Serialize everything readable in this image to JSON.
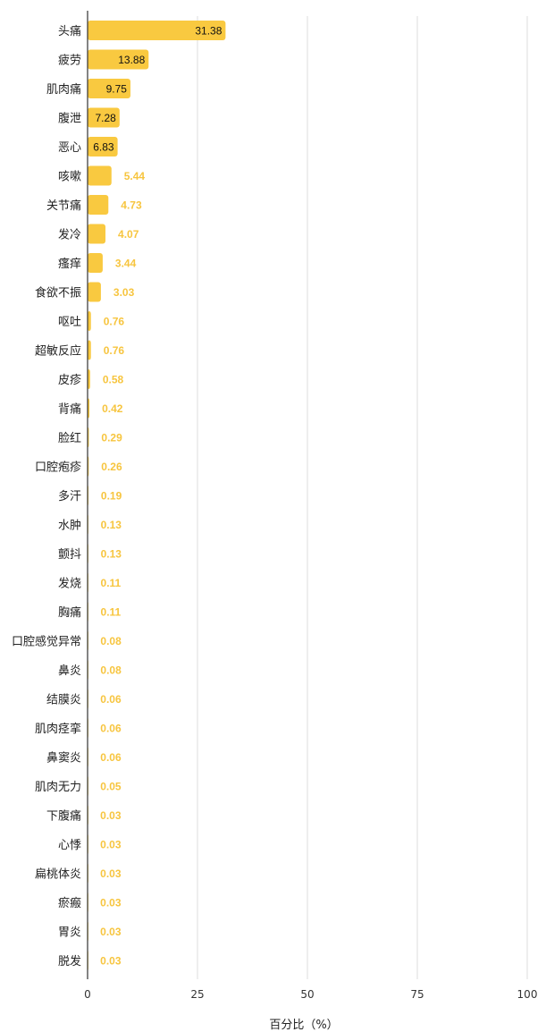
{
  "chart_data": {
    "type": "bar",
    "orientation": "horizontal",
    "categories": [
      "头痛",
      "疲劳",
      "肌肉痛",
      "腹泄",
      "恶心",
      "咳嗽",
      "关节痛",
      "发冷",
      "瘙痒",
      "食欲不振",
      "呕吐",
      "超敏反应",
      "皮疹",
      "背痛",
      "脸红",
      "口腔疱疹",
      "多汗",
      "水肿",
      "颤抖",
      "发烧",
      "胸痛",
      "口腔感觉异常",
      "鼻炎",
      "结膜炎",
      "肌肉痉挛",
      "鼻窦炎",
      "肌肉无力",
      "下腹痛",
      "心悸",
      "扁桃体炎",
      "瘀瘢",
      "胃炎",
      "脱发"
    ],
    "values": [
      31.38,
      13.88,
      9.75,
      7.28,
      6.83,
      5.44,
      4.73,
      4.07,
      3.44,
      3.03,
      0.76,
      0.76,
      0.58,
      0.42,
      0.29,
      0.26,
      0.19,
      0.13,
      0.13,
      0.11,
      0.11,
      0.08,
      0.08,
      0.06,
      0.06,
      0.06,
      0.05,
      0.03,
      0.03,
      0.03,
      0.03,
      0.03,
      0.03
    ],
    "value_labels": [
      "31.38",
      "13.88",
      "9.75",
      "7.28",
      "6.83",
      "5.44",
      "4.73",
      "4.07",
      "3.44",
      "3.03",
      "0.76",
      "0.76",
      "0.58",
      "0.42",
      "0.29",
      "0.26",
      "0.19",
      "0.13",
      "0.13",
      "0.11",
      "0.11",
      "0.08",
      "0.08",
      "0.06",
      "0.06",
      "0.06",
      "0.05",
      "0.03",
      "0.03",
      "0.03",
      "0.03",
      "0.03",
      "0.03"
    ],
    "xlabel": "百分比（%）",
    "xlim": [
      0,
      100
    ],
    "xticks": [
      0,
      25,
      50,
      75,
      100
    ],
    "xtick_labels": [
      "0",
      "25",
      "50",
      "75",
      "100"
    ],
    "grid": true,
    "bar_color": "#f9c940",
    "grid_color": "#dddddd"
  }
}
